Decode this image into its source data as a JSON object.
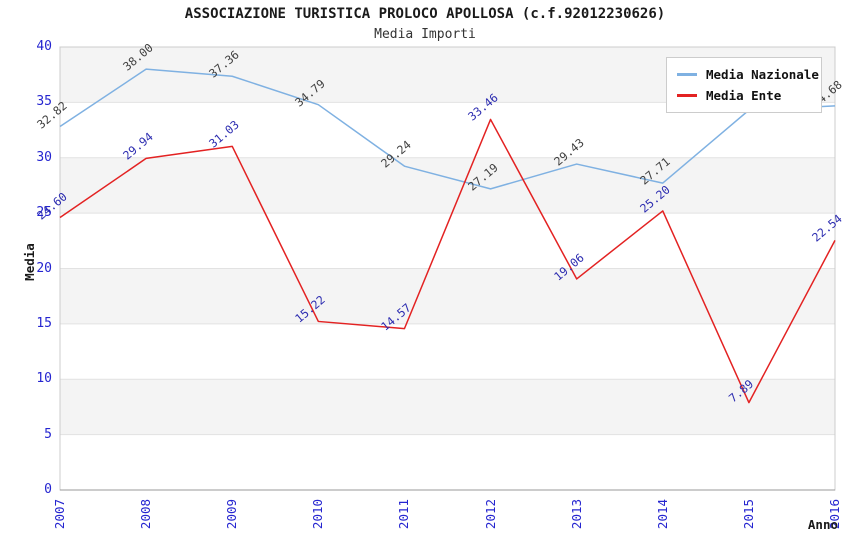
{
  "header": {
    "title": "ASSOCIAZIONE TURISTICA PROLOCO APOLLOSA (c.f.92012230626)",
    "subtitle": "Media Importi"
  },
  "chart_data": {
    "type": "line",
    "title": "ASSOCIAZIONE TURISTICA PROLOCO APOLLOSA (c.f.92012230626)",
    "subtitle": "Media Importi",
    "xlabel": "Anno",
    "ylabel": "Media",
    "categories": [
      "2007",
      "2008",
      "2009",
      "2010",
      "2011",
      "2012",
      "2013",
      "2014",
      "2015",
      "2016"
    ],
    "y_ticks": [
      0,
      5,
      10,
      15,
      20,
      25,
      30,
      35,
      40
    ],
    "ylim": [
      0,
      40
    ],
    "grid": "horizontal gridlines every 5, alternating shaded bands",
    "gray_bands": [
      [
        35,
        40
      ],
      [
        25,
        30
      ],
      [
        15,
        20
      ],
      [
        5,
        10
      ]
    ],
    "legend_position": "top-right",
    "series": [
      {
        "name": "Media Nazionale",
        "color": "#7fb1e2",
        "label_color": "#3f3f3f",
        "values": [
          32.82,
          38.0,
          37.36,
          34.79,
          29.24,
          27.19,
          29.43,
          27.71,
          34.3,
          34.68
        ],
        "labels": [
          "32.82",
          "38.00",
          "37.36",
          "34.79",
          "29.24",
          "27.19",
          "29.43",
          "27.71",
          "",
          "34.68"
        ],
        "note": "2015 point label is hidden behind the legend box; value ~34.3 estimated from line position"
      },
      {
        "name": "Media Ente",
        "color": "#e32222",
        "label_color": "#2c2cb0",
        "values": [
          24.6,
          29.94,
          31.03,
          15.22,
          14.57,
          33.46,
          19.06,
          25.2,
          7.89,
          22.54
        ],
        "labels": [
          "24.60",
          "29.94",
          "31.03",
          "15.22",
          "14.57",
          "33.46",
          "19.06",
          "25.20",
          "7.89",
          "22.54"
        ]
      }
    ]
  },
  "colors": {
    "tick_label": "#2525d0",
    "band_gray": "#f4f4f4",
    "gridline": "#e2e2e2",
    "plot_border": "#cccccc",
    "bottom_axis": "#999999",
    "background": "#ffffff"
  }
}
